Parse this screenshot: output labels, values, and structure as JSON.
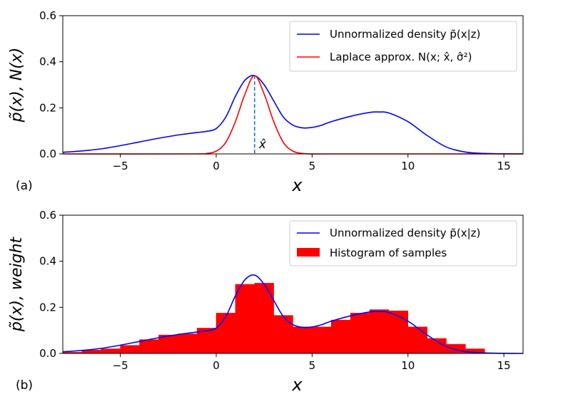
{
  "chart_data": [
    {
      "type": "line",
      "panel_label": "(a)",
      "xlabel": "x",
      "ylabel": "p̃(x), N(x)",
      "xlim": [
        -8,
        16
      ],
      "ylim": [
        0,
        0.6
      ],
      "xticks": [
        -5,
        0,
        5,
        10,
        15
      ],
      "xtick_labels": [
        "−5",
        "0",
        "5",
        "10",
        "15"
      ],
      "yticks": [
        0.0,
        0.2,
        0.4,
        0.6
      ],
      "ytick_labels": [
        "0.0",
        "0.2",
        "0.4",
        "0.6"
      ],
      "legend_position": "top-right",
      "series": [
        {
          "name": "Unnormalized density p̃(x|z)",
          "color": "#0000ff",
          "x": [
            -8,
            -7,
            -6,
            -5,
            -4,
            -3,
            -2,
            -1,
            -0.5,
            0,
            0.5,
            1,
            1.5,
            2,
            2.5,
            3,
            3.5,
            4,
            4.5,
            5,
            5.5,
            6,
            7,
            8,
            8.5,
            9,
            10,
            11,
            12,
            13,
            14,
            15,
            16
          ],
          "y": [
            0.007,
            0.013,
            0.022,
            0.036,
            0.052,
            0.068,
            0.082,
            0.093,
            0.098,
            0.11,
            0.16,
            0.25,
            0.32,
            0.34,
            0.3,
            0.23,
            0.16,
            0.125,
            0.113,
            0.115,
            0.125,
            0.14,
            0.163,
            0.18,
            0.182,
            0.178,
            0.14,
            0.08,
            0.03,
            0.008,
            0.002,
            0.0005,
            0.0
          ]
        },
        {
          "name": "Laplace approx. N(x; x̂, σ̂²)",
          "color": "#ff0000",
          "x": [
            -8,
            -1,
            -0.5,
            0,
            0.5,
            1,
            1.5,
            2,
            2.5,
            3,
            3.5,
            4,
            4.5,
            5,
            6,
            16
          ],
          "y": [
            0.0,
            0.0,
            0.002,
            0.012,
            0.05,
            0.14,
            0.26,
            0.34,
            0.26,
            0.14,
            0.05,
            0.012,
            0.002,
            0.0,
            0.0,
            0.0
          ]
        }
      ],
      "annotations": [
        {
          "label": "x̂",
          "x": 2,
          "style": "dashed vertical line",
          "color": "#1f77b4",
          "y_top": 0.34
        }
      ]
    },
    {
      "type": "bar",
      "panel_label": "(b)",
      "xlabel": "x",
      "ylabel": "p̃(x), weight",
      "xlim": [
        -8,
        16
      ],
      "ylim": [
        0,
        0.6
      ],
      "xticks": [
        -5,
        0,
        5,
        10,
        15
      ],
      "xtick_labels": [
        "−5",
        "0",
        "5",
        "10",
        "15"
      ],
      "yticks": [
        0.0,
        0.2,
        0.4,
        0.6
      ],
      "ytick_labels": [
        "0.0",
        "0.2",
        "0.4",
        "0.6"
      ],
      "legend_position": "top-right",
      "line_series": {
        "name": "Unnormalized density p̃(x|z)",
        "color": "#0000ff",
        "x": [
          -8,
          -7,
          -6,
          -5,
          -4,
          -3,
          -2,
          -1,
          -0.5,
          0,
          0.5,
          1,
          1.5,
          2,
          2.5,
          3,
          3.5,
          4,
          4.5,
          5,
          5.5,
          6,
          7,
          8,
          8.5,
          9,
          10,
          11,
          12,
          13,
          14,
          15,
          16
        ],
        "y": [
          0.007,
          0.013,
          0.022,
          0.036,
          0.052,
          0.068,
          0.082,
          0.093,
          0.098,
          0.11,
          0.16,
          0.25,
          0.32,
          0.34,
          0.3,
          0.23,
          0.16,
          0.125,
          0.113,
          0.115,
          0.125,
          0.14,
          0.163,
          0.18,
          0.182,
          0.178,
          0.14,
          0.08,
          0.03,
          0.008,
          0.002,
          0.0005,
          0.0
        ]
      },
      "histogram": {
        "name": "Histogram of samples",
        "color": "#ff0000",
        "bin_edges": [
          -8,
          -7,
          -6,
          -5,
          -4,
          -3,
          -2,
          -1,
          0,
          1,
          2,
          3,
          4,
          5,
          6,
          7,
          8,
          9,
          10,
          11,
          12,
          13,
          14
        ],
        "values": [
          0.005,
          0.015,
          0.02,
          0.035,
          0.06,
          0.08,
          0.085,
          0.11,
          0.175,
          0.3,
          0.305,
          0.165,
          0.115,
          0.115,
          0.145,
          0.175,
          0.19,
          0.185,
          0.115,
          0.065,
          0.04,
          0.02
        ]
      }
    }
  ]
}
